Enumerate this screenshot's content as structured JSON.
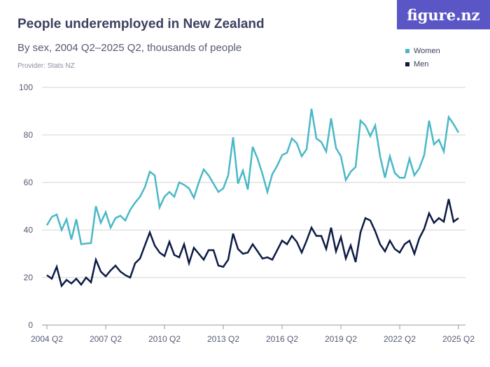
{
  "header": {
    "title": "People underemployed in New Zealand",
    "subtitle": "By sex, 2004 Q2–2025 Q2, thousands of people",
    "provider": "Provider: Stats NZ",
    "logo": "figure.nz"
  },
  "chart_data": {
    "type": "line",
    "title": "People underemployed in New Zealand",
    "subtitle": "By sex, 2004 Q2–2025 Q2, thousands of people",
    "x_start": "2004 Q2",
    "x_end": "2025 Q2",
    "x_ticks": [
      "2004 Q2",
      "2007 Q2",
      "2010 Q2",
      "2013 Q2",
      "2016 Q2",
      "2019 Q2",
      "2022 Q2",
      "2025 Q2"
    ],
    "y_ticks": [
      0,
      20,
      40,
      60,
      80,
      100
    ],
    "ylim": [
      0,
      100
    ],
    "grid": true,
    "legend": "top-right",
    "series": [
      {
        "name": "Women",
        "color": "#4ab8c7",
        "values": [
          42,
          45.5,
          46.5,
          40,
          44.5,
          36,
          44.5,
          34,
          34.3,
          34.5,
          50,
          43,
          47.5,
          41,
          45,
          46,
          44,
          48.5,
          51.5,
          54,
          58,
          64.5,
          63,
          49.5,
          54,
          56,
          54,
          60,
          59,
          57.5,
          53.5,
          60,
          65.5,
          63,
          59.5,
          56,
          57.5,
          63,
          79,
          59.5,
          65,
          57,
          75,
          70,
          63.5,
          56,
          63.5,
          67,
          71.5,
          72.5,
          78.5,
          76.5,
          71,
          74,
          91,
          78.5,
          77,
          73,
          87,
          74.5,
          71,
          61,
          64.5,
          66.5,
          86,
          84,
          79.5,
          84,
          71,
          62,
          71,
          64,
          62,
          62,
          70,
          63,
          66,
          71.5,
          86,
          76,
          78,
          73,
          87.5,
          84.5,
          81
        ]
      },
      {
        "name": "Men",
        "color": "#0c1a44",
        "values": [
          21,
          19.5,
          24.5,
          16.5,
          19,
          17.5,
          19.5,
          17,
          20,
          18,
          27.5,
          22.5,
          20.5,
          23,
          25,
          22.5,
          21,
          20,
          26,
          28,
          33.5,
          39,
          33.5,
          30.5,
          29,
          35,
          29.5,
          28.5,
          34,
          26,
          32.5,
          30,
          27.5,
          31.5,
          31.5,
          25,
          24.5,
          27.5,
          38.5,
          32,
          30,
          30.5,
          34,
          31,
          28,
          28.5,
          27.5,
          31.5,
          35.5,
          34,
          37.5,
          35,
          30.5,
          35.5,
          41,
          37.5,
          37.5,
          32,
          41,
          31,
          37,
          28,
          33.5,
          26.5,
          39,
          45,
          44,
          39.5,
          34,
          31,
          35.5,
          32,
          30.5,
          34,
          35.5,
          30,
          36.5,
          40.5,
          47,
          43,
          45,
          43.5,
          53,
          43.5,
          45
        ]
      }
    ]
  }
}
